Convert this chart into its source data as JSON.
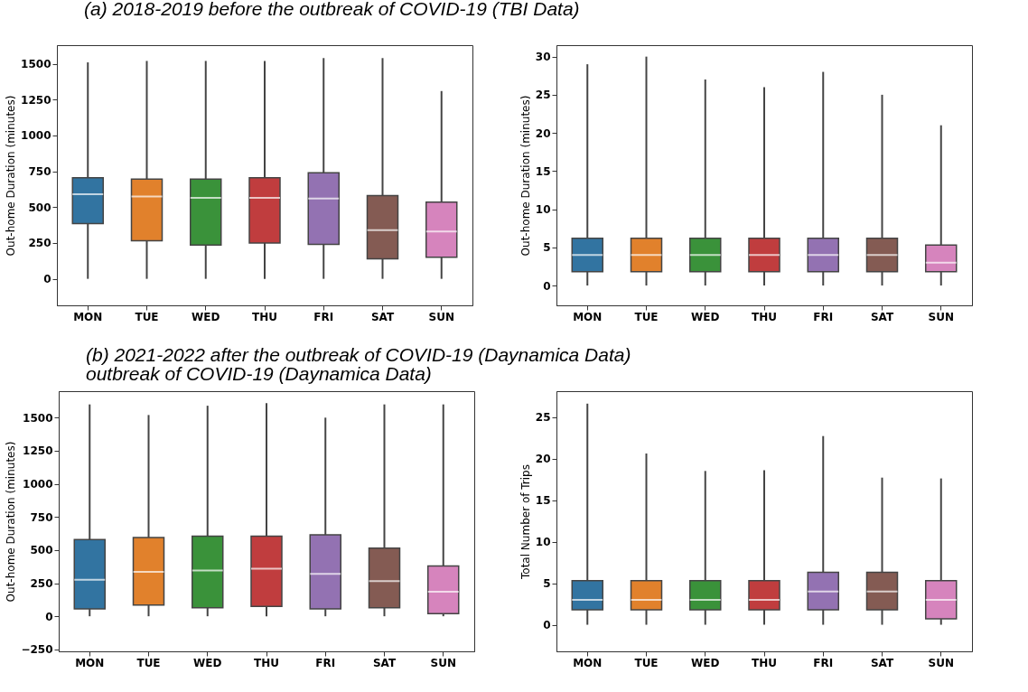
{
  "chart_data": [
    {
      "type": "box",
      "title": "(a) 2018-2019 before the outbreak of COVID-19 (TBI Data)",
      "ylabel": "Out-home Duration (minutes)",
      "categories": [
        "MON",
        "TUE",
        "WED",
        "THU",
        "FRI",
        "SAT",
        "SUN"
      ],
      "colors": [
        "#3274a1",
        "#e1812c",
        "#3a923a",
        "#c03d3e",
        "#9372b2",
        "#845b53",
        "#d684bd"
      ],
      "ylim": [
        -185,
        1630
      ],
      "yticks": [
        0,
        250,
        500,
        750,
        1000,
        1250,
        1500
      ],
      "boxes": [
        {
          "low": 0,
          "q1": 385,
          "median": 590,
          "q3": 705,
          "high": 1510
        },
        {
          "low": 0,
          "q1": 265,
          "median": 575,
          "q3": 695,
          "high": 1520
        },
        {
          "low": 0,
          "q1": 235,
          "median": 565,
          "q3": 695,
          "high": 1520
        },
        {
          "low": 0,
          "q1": 250,
          "median": 565,
          "q3": 705,
          "high": 1520
        },
        {
          "low": 0,
          "q1": 240,
          "median": 560,
          "q3": 740,
          "high": 1540
        },
        {
          "low": 0,
          "q1": 140,
          "median": 340,
          "q3": 580,
          "high": 1540
        },
        {
          "low": 0,
          "q1": 150,
          "median": 330,
          "q3": 535,
          "high": 1310
        }
      ]
    },
    {
      "type": "box",
      "ylabel": "Out-home Duration (minutes)",
      "categories": [
        "MON",
        "TUE",
        "WED",
        "THU",
        "FRI",
        "SAT",
        "SUN"
      ],
      "colors": [
        "#3274a1",
        "#e1812c",
        "#3a923a",
        "#c03d3e",
        "#9372b2",
        "#845b53",
        "#d684bd"
      ],
      "ylim": [
        -2.6,
        31.5
      ],
      "yticks": [
        0,
        5,
        10,
        15,
        20,
        25,
        30
      ],
      "boxes": [
        {
          "low": 0,
          "q1": 1.8,
          "median": 4,
          "q3": 6.2,
          "high": 29
        },
        {
          "low": 0,
          "q1": 1.8,
          "median": 4,
          "q3": 6.2,
          "high": 30
        },
        {
          "low": 0,
          "q1": 1.8,
          "median": 4,
          "q3": 6.2,
          "high": 27
        },
        {
          "low": 0,
          "q1": 1.8,
          "median": 4,
          "q3": 6.2,
          "high": 26
        },
        {
          "low": 0,
          "q1": 1.8,
          "median": 4,
          "q3": 6.2,
          "high": 28
        },
        {
          "low": 0,
          "q1": 1.8,
          "median": 4,
          "q3": 6.2,
          "high": 25
        },
        {
          "low": 0,
          "q1": 1.8,
          "median": 3,
          "q3": 5.3,
          "high": 21
        }
      ]
    },
    {
      "type": "box",
      "title": "(b) 2021-2022 after the outbreak of COVID-19 (Daynamica Data)",
      "annotations": [
        "outbreak of COVID-19 (Daynamica Data)"
      ],
      "ylabel": "Out-home Duration (minutes)",
      "categories": [
        "MON",
        "TUE",
        "WED",
        "THU",
        "FRI",
        "SAT",
        "SUN"
      ],
      "colors": [
        "#3274a1",
        "#e1812c",
        "#3a923a",
        "#c03d3e",
        "#9372b2",
        "#845b53",
        "#d684bd"
      ],
      "ylim": [
        -265,
        1700
      ],
      "yticks": [
        -250,
        0,
        250,
        500,
        750,
        1000,
        1250,
        1500
      ],
      "boxes": [
        {
          "low": 0,
          "q1": 55,
          "median": 275,
          "q3": 580,
          "high": 1600
        },
        {
          "low": 0,
          "q1": 85,
          "median": 335,
          "q3": 595,
          "high": 1520
        },
        {
          "low": 0,
          "q1": 65,
          "median": 345,
          "q3": 605,
          "high": 1590
        },
        {
          "low": 0,
          "q1": 75,
          "median": 360,
          "q3": 605,
          "high": 1610
        },
        {
          "low": 0,
          "q1": 55,
          "median": 320,
          "q3": 615,
          "high": 1500
        },
        {
          "low": 0,
          "q1": 65,
          "median": 265,
          "q3": 515,
          "high": 1600
        },
        {
          "low": 0,
          "q1": 20,
          "median": 185,
          "q3": 380,
          "high": 1600
        }
      ]
    },
    {
      "type": "box",
      "ylabel": "Total Number of Trips",
      "categories": [
        "MON",
        "TUE",
        "WED",
        "THU",
        "FRI",
        "SAT",
        "SUN"
      ],
      "colors": [
        "#3274a1",
        "#e1812c",
        "#3a923a",
        "#c03d3e",
        "#9372b2",
        "#845b53",
        "#d684bd"
      ],
      "ylim": [
        -3.2,
        28.1
      ],
      "yticks": [
        0,
        5,
        10,
        15,
        20,
        25
      ],
      "boxes": [
        {
          "low": 0,
          "q1": 1.8,
          "median": 3,
          "q3": 5.3,
          "high": 26.6
        },
        {
          "low": 0,
          "q1": 1.8,
          "median": 3,
          "q3": 5.3,
          "high": 20.6
        },
        {
          "low": 0,
          "q1": 1.8,
          "median": 3,
          "q3": 5.3,
          "high": 18.5
        },
        {
          "low": 0,
          "q1": 1.8,
          "median": 3,
          "q3": 5.3,
          "high": 18.6
        },
        {
          "low": 0,
          "q1": 1.8,
          "median": 4,
          "q3": 6.3,
          "high": 22.7
        },
        {
          "low": 0,
          "q1": 1.8,
          "median": 4,
          "q3": 6.3,
          "high": 17.7
        },
        {
          "low": 0,
          "q1": 0.7,
          "median": 3,
          "q3": 5.3,
          "high": 17.6
        }
      ]
    }
  ]
}
